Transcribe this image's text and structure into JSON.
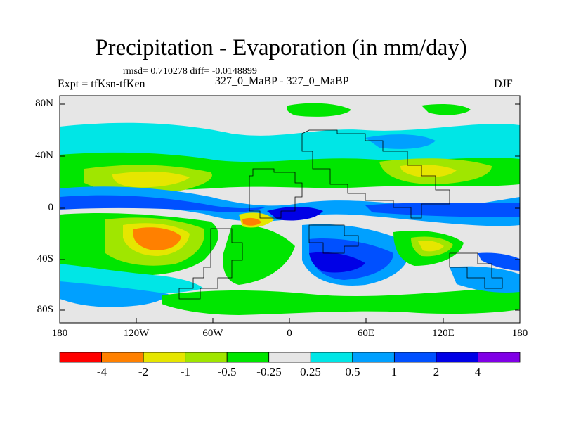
{
  "title": "Precipitation - Evaporation (in mm/day)",
  "stats": "rmsd= 0.710278 diff= -0.0148899",
  "experiment": "Expt = tfKsn-tfKen",
  "subtitle": "327_0_MaBP - 327_0_MaBP",
  "season": "DJF",
  "map": {
    "type": "filled-contour-map",
    "background_class_color": "#e6e6e6",
    "y_ticks": [
      "80N",
      "40N",
      "0",
      "40S",
      "80S"
    ],
    "x_ticks": [
      "180",
      "120W",
      "60W",
      "0",
      "60E",
      "120E",
      "180"
    ]
  },
  "colorbar": {
    "labels": [
      "-4",
      "-2",
      "-1",
      "-0.5",
      "-0.25",
      "0.25",
      "0.5",
      "1",
      "2",
      "4"
    ],
    "colors": [
      "#ff0000",
      "#ff8000",
      "#e6e600",
      "#a0e600",
      "#00e600",
      "#e6e6e6",
      "#00e6e6",
      "#00a0ff",
      "#0050ff",
      "#0000e6",
      "#8000e6"
    ]
  }
}
